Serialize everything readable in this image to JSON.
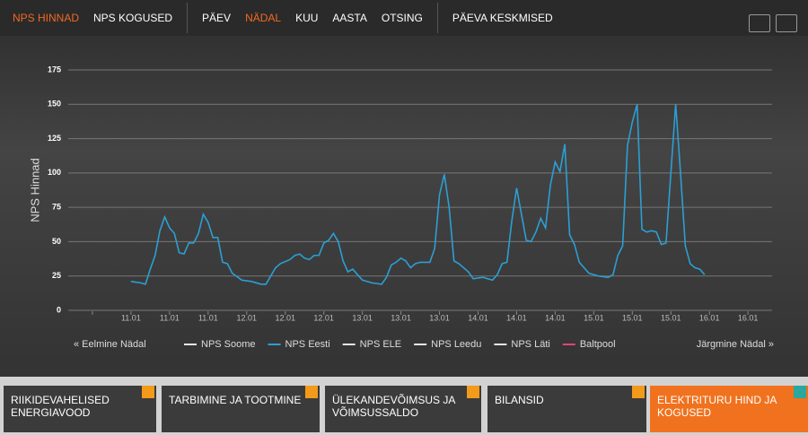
{
  "nav": {
    "left": [
      "NPS HINNAD",
      "NPS KOGUSED"
    ],
    "middle": [
      "PÄEV",
      "NÄDAL",
      "KUU",
      "AASTA",
      "OTSING"
    ],
    "right": [
      "PÄEVA KESKMISED"
    ]
  },
  "pager": {
    "previous": "« Eelmine Nädal",
    "next": "Järgmine Nädal »"
  },
  "tiles": [
    "RIIKIDEVAHELISED ENERGIAVOOD",
    "TARBIMINE JA TOOTMINE",
    "ÜLEKANDEVÕIMSUS JA VÕIMSUSSALDO",
    "BILANSID",
    "ELEKTRITURU HIND JA KOGUSED"
  ],
  "chart_data": {
    "type": "line",
    "y_label": "NPS Hinnad",
    "x": [
      0,
      2,
      3,
      4,
      5,
      6,
      7,
      8,
      9,
      10,
      11,
      12,
      13,
      14,
      15,
      16,
      17,
      18,
      19,
      20,
      21,
      23,
      25,
      27,
      28,
      29,
      30,
      31,
      33,
      34,
      35,
      36,
      37,
      38,
      39,
      40,
      41,
      42,
      43,
      44,
      45,
      46,
      47,
      48,
      50,
      52,
      53,
      54,
      55,
      56,
      57,
      58,
      59,
      60,
      62,
      63,
      64,
      65,
      66,
      67,
      68,
      70,
      71,
      73,
      75,
      76,
      77,
      78,
      79,
      80,
      81,
      82,
      83,
      84,
      85,
      86,
      87,
      88,
      89,
      90,
      91,
      92,
      93,
      95,
      97,
      99,
      100,
      101,
      102,
      103,
      104,
      105,
      106,
      107,
      108,
      109,
      110,
      111,
      112,
      113,
      114,
      115,
      116,
      117,
      118,
      119
    ],
    "series": [
      {
        "name": "NPS Soome",
        "color": "#e6e6e6"
      },
      {
        "name": "NPS Eesti",
        "color": "#2b9fd4",
        "values": [
          21,
          20,
          19,
          30,
          40,
          58,
          68,
          60,
          56,
          42,
          41,
          49,
          49,
          56,
          70,
          64,
          53,
          53,
          35,
          34,
          27,
          22,
          21,
          19,
          19,
          25,
          31,
          34,
          37,
          40,
          41,
          38,
          37,
          40,
          40,
          49,
          51,
          56,
          50,
          36,
          28,
          30,
          26,
          22,
          20,
          19,
          24,
          33,
          35,
          38,
          36,
          31,
          34,
          35,
          35,
          45,
          84,
          99,
          75,
          36,
          34,
          28,
          23,
          24,
          22,
          26,
          34,
          35,
          65,
          89,
          70,
          51,
          50,
          57,
          67,
          60,
          91,
          108,
          101,
          121,
          55,
          48,
          35,
          27,
          25,
          24,
          26,
          40,
          47,
          120,
          137,
          150,
          59,
          57,
          58,
          57,
          48,
          49,
          100,
          150,
          100,
          47,
          34,
          31,
          30,
          26
        ]
      },
      {
        "name": "NPS ELE",
        "color": "#e6e6e6"
      },
      {
        "name": "NPS Leedu",
        "color": "#e6e6e6"
      },
      {
        "name": "NPS Läti",
        "color": "#e6e6e6"
      },
      {
        "name": "Baltpool",
        "color": "#e0457b"
      }
    ],
    "xlim": [
      -16,
      133
    ],
    "xticks": [
      {
        "value": -8,
        "label": null
      },
      {
        "value": 0,
        "label": "11.01"
      },
      {
        "value": 8,
        "label": "11.01"
      },
      {
        "value": 16,
        "label": "11.01"
      },
      {
        "value": 24,
        "label": "12.01"
      },
      {
        "value": 32,
        "label": "12.01"
      },
      {
        "value": 40,
        "label": "12.01"
      },
      {
        "value": 48,
        "label": "13.01"
      },
      {
        "value": 56,
        "label": "13.01"
      },
      {
        "value": 64,
        "label": "13.01"
      },
      {
        "value": 72,
        "label": "14.01"
      },
      {
        "value": 80,
        "label": "14.01"
      },
      {
        "value": 88,
        "label": "14.01"
      },
      {
        "value": 96,
        "label": "15.01"
      },
      {
        "value": 104,
        "label": "15.01"
      },
      {
        "value": 112,
        "label": "15.01"
      },
      {
        "value": 120,
        "label": "16.01"
      },
      {
        "value": 128,
        "label": "16.01"
      }
    ],
    "ylim": [
      0,
      175
    ],
    "yticks": [
      0,
      25,
      50,
      75,
      100,
      125,
      150,
      175
    ],
    "grid": true
  }
}
